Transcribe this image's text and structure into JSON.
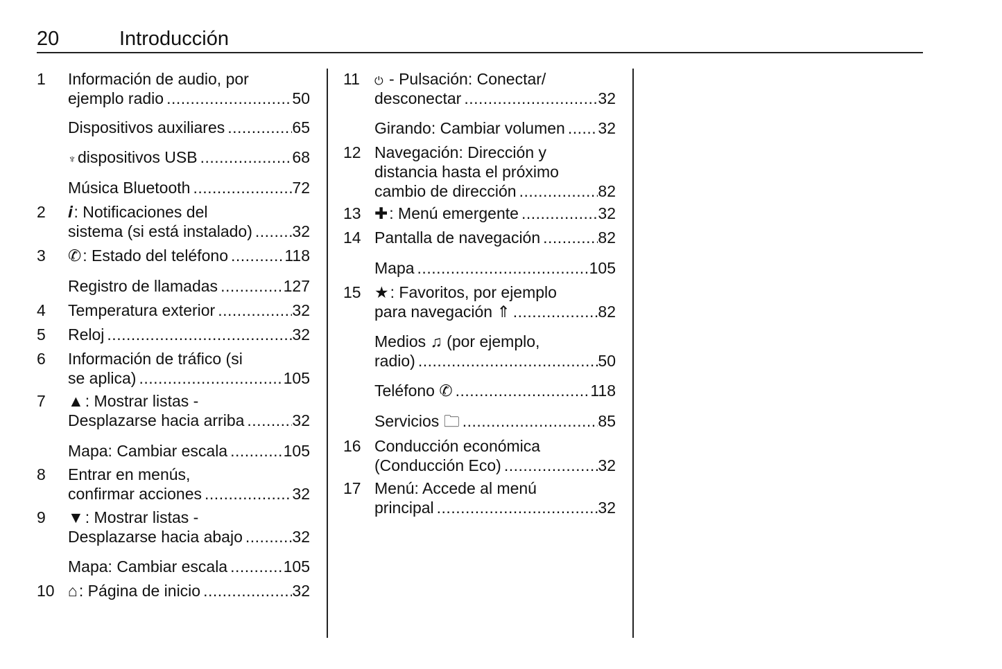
{
  "header": {
    "page_number": "20",
    "title": "Introducción"
  },
  "columns": [
    {
      "entries": [
        {
          "num": "1",
          "lines": [
            "Información de audio, por",
            "ejemplo radio"
          ],
          "page": "50"
        },
        {
          "num": "",
          "lines": [
            "Dispositivos auxiliares"
          ],
          "page": "65"
        },
        {
          "num": "",
          "icon": "usb-icon",
          "lines": [
            "dispositivos USB"
          ],
          "page": "68"
        },
        {
          "num": "",
          "lines": [
            "Música Bluetooth"
          ],
          "page": "72"
        },
        {
          "num": "2",
          "icon": "info-icon",
          "lines": [
            ": Notificaciones del",
            "sistema (si está instalado)"
          ],
          "page": "32"
        },
        {
          "num": "3",
          "icon": "phone-icon",
          "lines": [
            ": Estado del teléfono"
          ],
          "page": "118"
        },
        {
          "num": "",
          "lines": [
            "Registro de llamadas"
          ],
          "page": "127"
        },
        {
          "num": "4",
          "lines": [
            "Temperatura exterior"
          ],
          "page": "32"
        },
        {
          "num": "5",
          "lines": [
            "Reloj"
          ],
          "page": "32"
        },
        {
          "num": "6",
          "lines": [
            "Información de tráfico (si",
            "se aplica)"
          ],
          "page": "105"
        },
        {
          "num": "7",
          "icon": "triangle-up-icon",
          "lines": [
            ": Mostrar listas -",
            "Desplazarse hacia arriba"
          ],
          "page": "32"
        },
        {
          "num": "",
          "lines": [
            "Mapa: Cambiar escala"
          ],
          "page": "105"
        },
        {
          "num": "8",
          "lines": [
            "Entrar en menús,",
            "confirmar acciones"
          ],
          "page": "32"
        },
        {
          "num": "9",
          "icon": "triangle-down-icon",
          "lines": [
            ": Mostrar listas -",
            "Desplazarse hacia abajo"
          ],
          "page": "32"
        },
        {
          "num": "",
          "lines": [
            "Mapa: Cambiar escala"
          ],
          "page": "105"
        },
        {
          "num": "10",
          "icon": "home-icon",
          "lines": [
            ": Página de inicio"
          ],
          "page": "32"
        }
      ]
    },
    {
      "entries": [
        {
          "num": "11",
          "icon": "power-icon",
          "lines": [
            " - Pulsación: Conectar/",
            "desconectar"
          ],
          "page": "32"
        },
        {
          "num": "",
          "lines": [
            "Girando: Cambiar volumen"
          ],
          "page": "32"
        },
        {
          "num": "12",
          "lines": [
            "Navegación: Dirección y",
            "distancia hasta el próximo",
            "cambio de dirección"
          ],
          "page": "82"
        },
        {
          "num": "13",
          "icon": "plus-icon",
          "lines": [
            ": Menú emergente"
          ],
          "page": "32"
        },
        {
          "num": "14",
          "lines": [
            "Pantalla de navegación"
          ],
          "page": "82"
        },
        {
          "num": "",
          "lines": [
            "Mapa"
          ],
          "page": "105"
        },
        {
          "num": "15",
          "icon": "star-icon",
          "lines": [
            ": Favoritos, por ejemplo",
            "para navegación ⇑"
          ],
          "page": "82"
        },
        {
          "num": "",
          "lines": [
            "Medios ♫ (por ejemplo,",
            "radio)"
          ],
          "page": "50"
        },
        {
          "num": "",
          "lines": [
            "Teléfono ✆"
          ],
          "page": "118"
        },
        {
          "num": "",
          "lines": [
            "Servicios 🗀"
          ],
          "page": "85"
        },
        {
          "num": "16",
          "lines": [
            "Conducción económica",
            "(Conducción Eco)"
          ],
          "page": "32"
        },
        {
          "num": "17",
          "lines": [
            "Menú: Accede al menú",
            "principal"
          ],
          "page": "32"
        }
      ]
    }
  ]
}
